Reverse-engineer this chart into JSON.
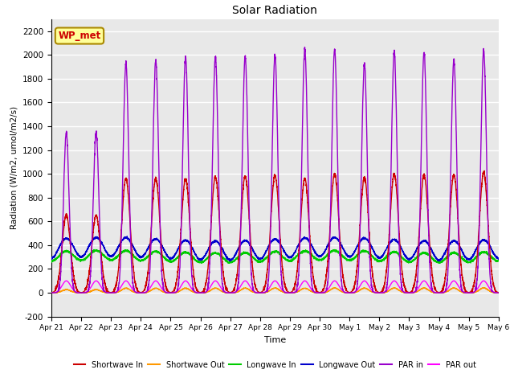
{
  "title": "Solar Radiation",
  "xlabel": "Time",
  "ylabel": "Radiation (W/m2, umol/m2/s)",
  "ylim": [
    -200,
    2300
  ],
  "yticks": [
    -200,
    0,
    200,
    400,
    600,
    800,
    1000,
    1200,
    1400,
    1600,
    1800,
    2000,
    2200
  ],
  "num_days": 15,
  "plot_bg_color": "#e8e8e8",
  "legend_entries": [
    "Shortwave In",
    "Shortwave Out",
    "Longwave In",
    "Longwave Out",
    "PAR in",
    "PAR out"
  ],
  "legend_colors": [
    "#cc0000",
    "#ff9900",
    "#00cc00",
    "#0000cc",
    "#9900cc",
    "#ff00ff"
  ],
  "annotation_text": "WP_met",
  "annotation_color": "#cc0000",
  "annotation_bg": "#ffff99",
  "tick_labels": [
    "Apr 21",
    "Apr 22",
    "Apr 23",
    "Apr 24",
    "Apr 25",
    "Apr 26",
    "Apr 27",
    "Apr 28",
    "Apr 29",
    "Apr 30",
    "May 1",
    "May 2",
    "May 3",
    "May 4",
    "May 5",
    "May 6"
  ]
}
